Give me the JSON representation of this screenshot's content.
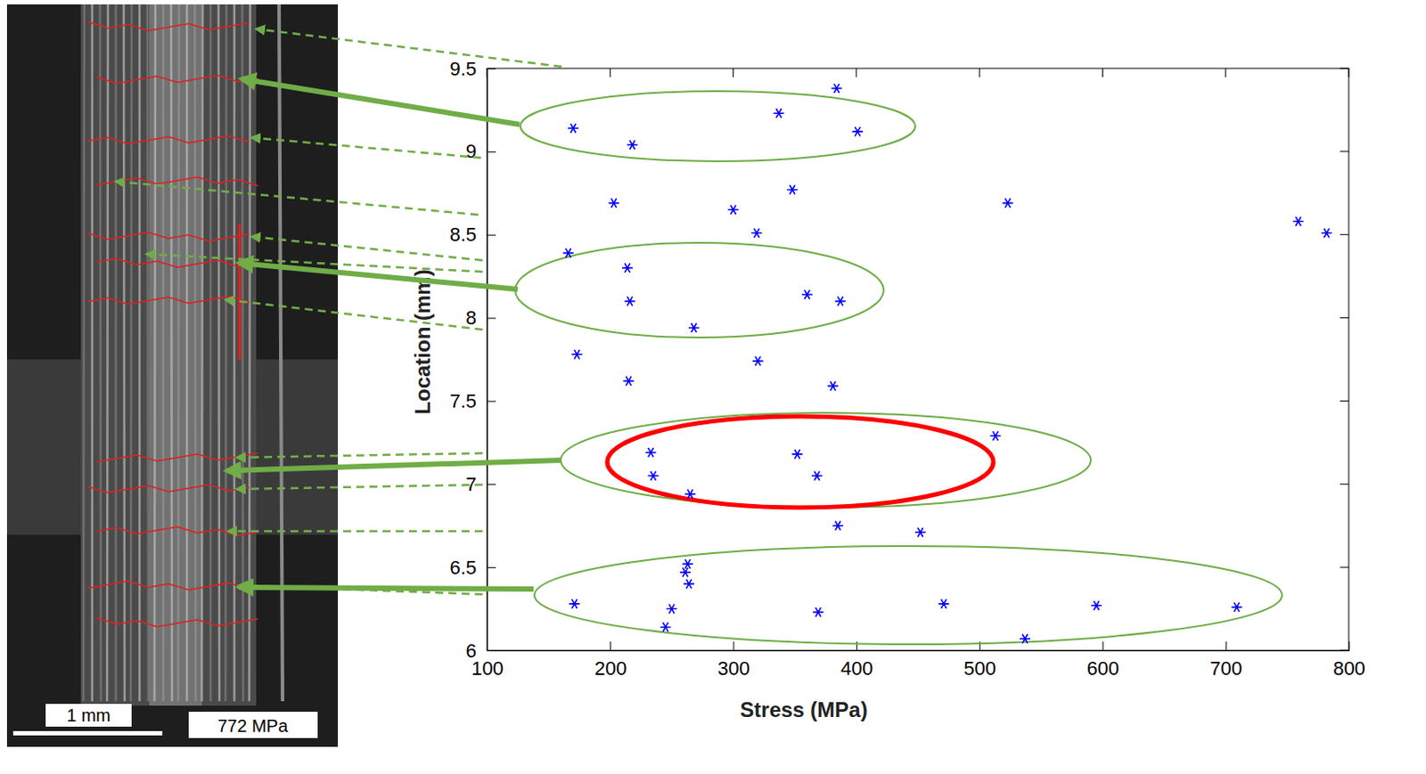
{
  "chart_data": {
    "type": "scatter",
    "x_label": "Stress (MPa)",
    "y_label": "Location (mm)",
    "color": "#0000ff",
    "marker": "asterisk",
    "xlim": [
      100,
      800
    ],
    "xticks": [
      100,
      200,
      300,
      400,
      500,
      600,
      700,
      800
    ],
    "ylim": [
      6,
      9.5
    ],
    "yticks": [
      6,
      6.5,
      7,
      7.5,
      8,
      8.5,
      9,
      9.5
    ],
    "grid": false,
    "x": [
      384,
      170,
      218,
      337,
      401,
      348,
      203,
      300,
      319,
      523,
      759,
      782,
      166,
      214,
      216,
      360,
      387,
      268,
      173,
      320,
      215,
      381,
      233,
      352,
      513,
      235,
      368,
      265,
      385,
      452,
      263,
      261,
      264,
      171,
      250,
      245,
      369,
      471,
      537,
      595,
      709
    ],
    "values": [
      9.38,
      9.14,
      9.04,
      9.23,
      9.12,
      8.77,
      8.69,
      8.65,
      8.51,
      8.69,
      8.58,
      8.51,
      8.39,
      8.3,
      8.1,
      8.14,
      8.1,
      7.94,
      7.78,
      7.74,
      7.62,
      7.59,
      7.19,
      7.18,
      7.29,
      7.05,
      7.05,
      6.94,
      6.75,
      6.71,
      6.52,
      6.47,
      6.4,
      6.28,
      6.25,
      6.14,
      6.23,
      6.28,
      6.07,
      6.27,
      6.26
    ],
    "annotations": {
      "scale_bar": "1 mm",
      "stress": "772 MPa"
    }
  }
}
